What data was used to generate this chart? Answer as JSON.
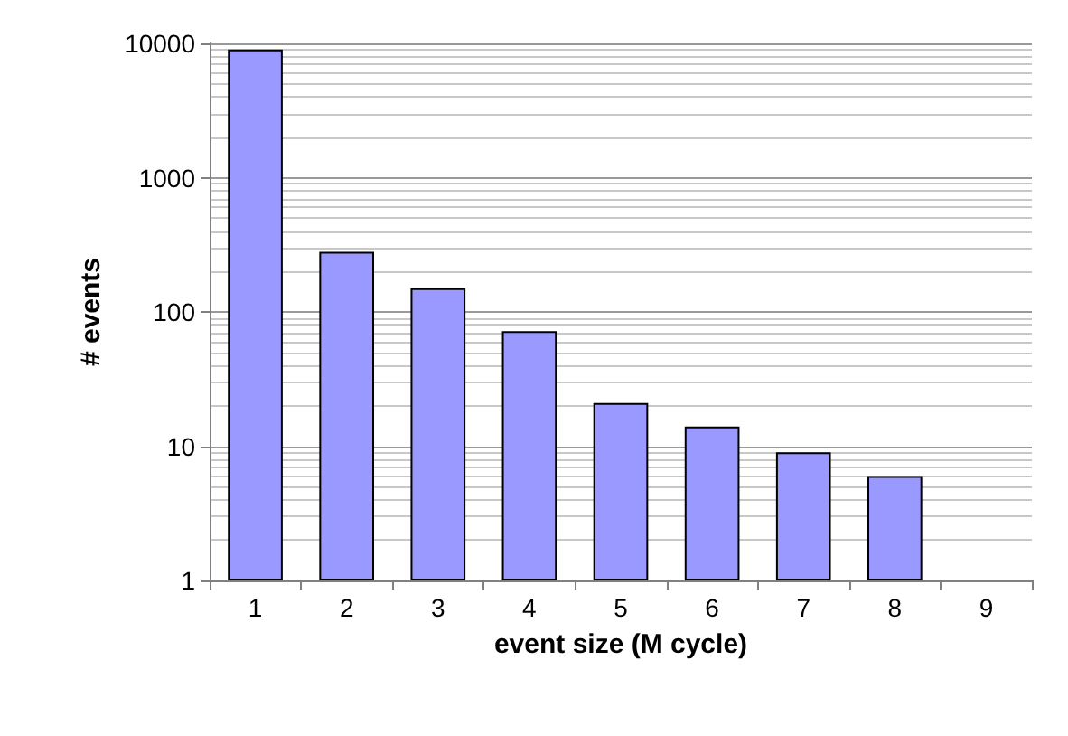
{
  "chart_data": {
    "type": "bar",
    "xlabel": "event size (M cycle)",
    "ylabel": "# events",
    "categories": [
      "1",
      "2",
      "3",
      "4",
      "5",
      "6",
      "7",
      "8",
      "9"
    ],
    "values": [
      9000,
      280,
      150,
      72,
      21,
      14,
      9,
      6,
      null
    ],
    "color": "#9999ff",
    "log": true,
    "ylim": [
      1,
      10000
    ],
    "yticks": [
      1,
      {
        "value": 2,
        "label": null
      },
      {
        "value": 3,
        "label": null
      },
      {
        "value": 4,
        "label": null
      },
      {
        "value": 5,
        "label": null
      },
      {
        "value": 6,
        "label": null
      },
      {
        "value": 7,
        "label": null
      },
      {
        "value": 8,
        "label": null
      },
      {
        "value": 9,
        "label": null
      },
      10,
      {
        "value": 20,
        "label": null
      },
      {
        "value": 30,
        "label": null
      },
      {
        "value": 40,
        "label": null
      },
      {
        "value": 50,
        "label": null
      },
      {
        "value": 60,
        "label": null
      },
      {
        "value": 70,
        "label": null
      },
      {
        "value": 80,
        "label": null
      },
      {
        "value": 90,
        "label": null
      },
      100,
      {
        "value": 200,
        "label": null
      },
      {
        "value": 300,
        "label": null
      },
      {
        "value": 400,
        "label": null
      },
      {
        "value": 500,
        "label": null
      },
      {
        "value": 600,
        "label": null
      },
      {
        "value": 700,
        "label": null
      },
      {
        "value": 800,
        "label": null
      },
      {
        "value": 900,
        "label": null
      },
      1000,
      {
        "value": 2000,
        "label": null
      },
      {
        "value": 3000,
        "label": null
      },
      {
        "value": 4000,
        "label": null
      },
      {
        "value": 5000,
        "label": null
      },
      {
        "value": 6000,
        "label": null
      },
      {
        "value": 7000,
        "label": null
      },
      {
        "value": 8000,
        "label": null
      },
      {
        "value": 9000,
        "label": null
      },
      10000
    ],
    "grid": "y"
  }
}
